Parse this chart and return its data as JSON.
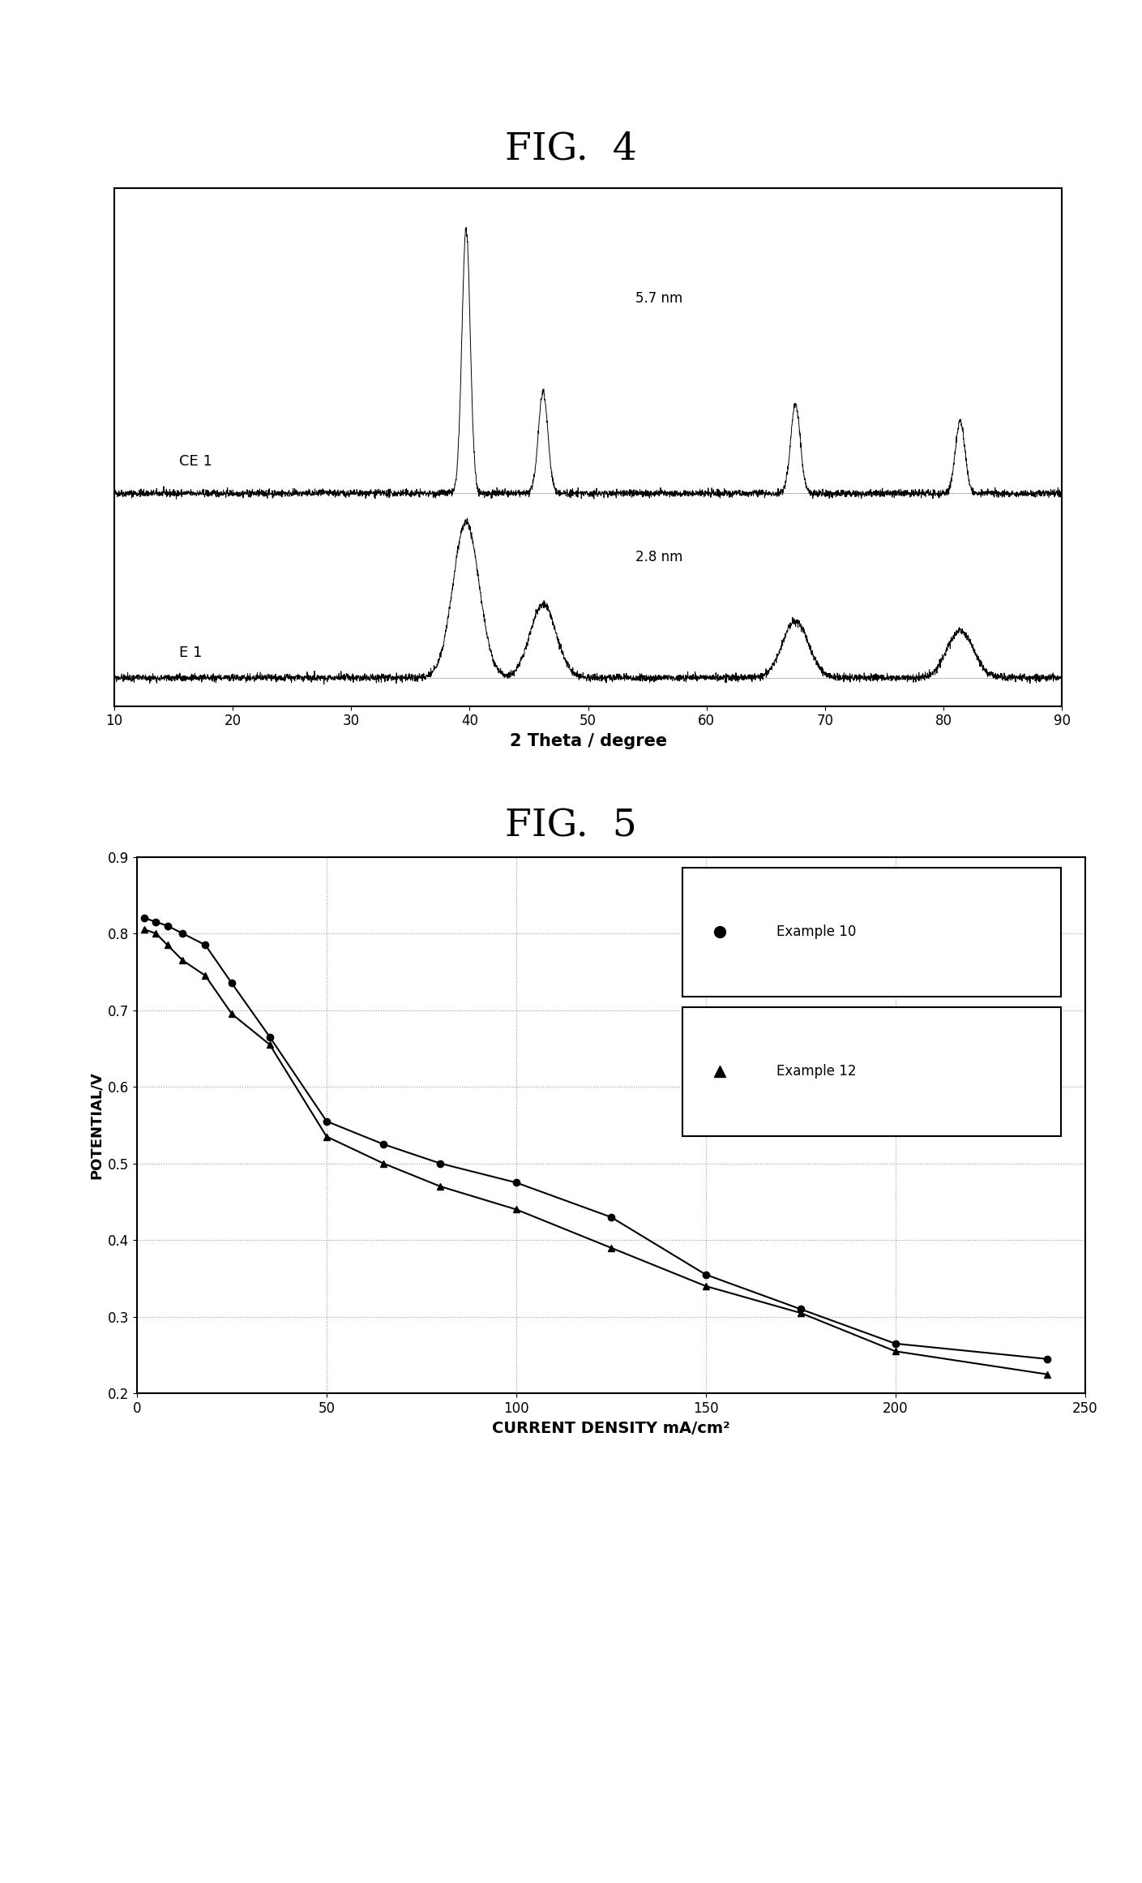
{
  "fig4_title": "FIG.  4",
  "fig5_title": "FIG.  5",
  "xrd_xlabel": "2 Theta / degree",
  "xrd_xlim": [
    10,
    90
  ],
  "xrd_xticks": [
    10,
    20,
    30,
    40,
    50,
    60,
    70,
    80,
    90
  ],
  "ce1_label": "CE 1",
  "ce1_annotation": "5.7 nm",
  "e1_label": "E 1",
  "e1_annotation": "2.8 nm",
  "fig5_xlabel": "CURRENT DENSITY mA/cm²",
  "fig5_ylabel": "POTENTIAL/V",
  "fig5_xlim": [
    0,
    250
  ],
  "fig5_ylim": [
    0.2,
    0.9
  ],
  "fig5_yticks": [
    0.2,
    0.3,
    0.4,
    0.5,
    0.6,
    0.7,
    0.8,
    0.9
  ],
  "fig5_xticks": [
    0,
    50,
    100,
    150,
    200,
    250
  ],
  "ex10_x": [
    2,
    5,
    8,
    12,
    18,
    25,
    35,
    50,
    65,
    80,
    100,
    125,
    150,
    175,
    200,
    240
  ],
  "ex10_y": [
    0.82,
    0.815,
    0.81,
    0.8,
    0.785,
    0.735,
    0.665,
    0.555,
    0.525,
    0.5,
    0.475,
    0.43,
    0.355,
    0.31,
    0.265,
    0.245
  ],
  "ex12_x": [
    2,
    5,
    8,
    12,
    18,
    25,
    35,
    50,
    65,
    80,
    100,
    125,
    150,
    175,
    200,
    240
  ],
  "ex12_y": [
    0.805,
    0.8,
    0.785,
    0.765,
    0.745,
    0.695,
    0.655,
    0.535,
    0.5,
    0.47,
    0.44,
    0.39,
    0.34,
    0.305,
    0.255,
    0.225
  ],
  "ex10_label": "Example 10",
  "ex12_label": "Example 12",
  "background_color": "#ffffff",
  "line_color": "#000000"
}
